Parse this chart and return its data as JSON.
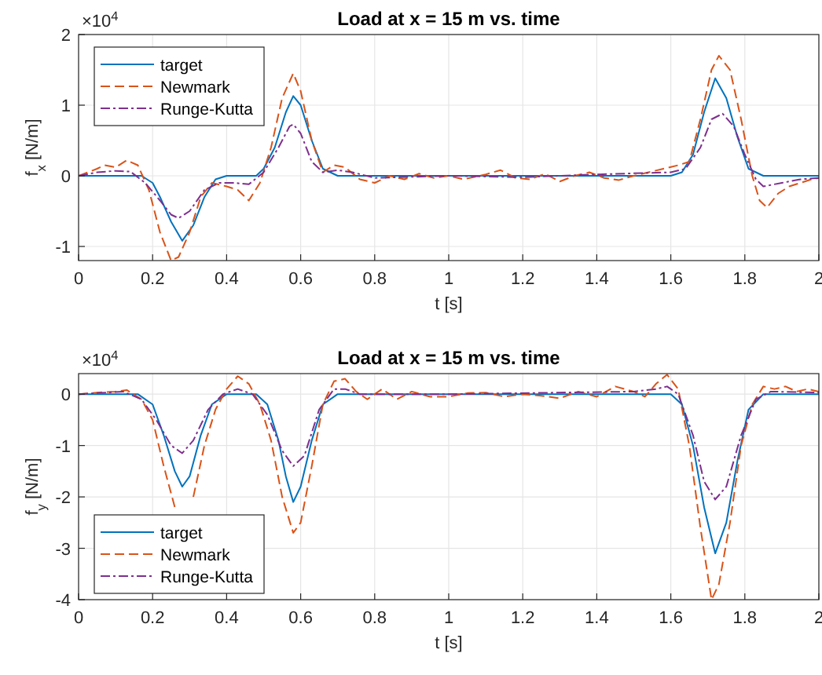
{
  "chart_data": [
    {
      "type": "line",
      "title": "Load at x = 15 m vs. time",
      "xlabel": "t [s]",
      "ylabel": "f$_{x}$ [N/m]",
      "annotations": [
        "×10$^{4}$"
      ],
      "xlim": [
        0,
        2
      ],
      "xticks": [
        0,
        0.2,
        0.4,
        0.6,
        0.8,
        1,
        1.2,
        1.4,
        1.6,
        1.8,
        2
      ],
      "ylim": [
        -1.2,
        2
      ],
      "yticks": [
        -1,
        0,
        1,
        2
      ],
      "grid": true,
      "legend": "top left",
      "series": [
        {
          "name": "target",
          "color": "#0072bd",
          "line_style": "solid",
          "x": [
            0,
            0.17,
            0.2,
            0.22,
            0.25,
            0.28,
            0.31,
            0.34,
            0.37,
            0.4,
            0.48,
            0.5,
            0.53,
            0.56,
            0.58,
            0.6,
            0.63,
            0.66,
            0.7,
            1.6,
            1.63,
            1.66,
            1.69,
            1.72,
            1.75,
            1.78,
            1.81,
            1.85,
            2
          ],
          "values": [
            0,
            0,
            -0.1,
            -0.3,
            -0.65,
            -0.92,
            -0.7,
            -0.3,
            -0.05,
            0,
            0,
            0.1,
            0.4,
            0.9,
            1.13,
            1.0,
            0.5,
            0.1,
            0,
            0,
            0.05,
            0.3,
            0.9,
            1.38,
            1.1,
            0.55,
            0.1,
            0,
            0
          ]
        },
        {
          "name": "Newmark",
          "color": "#d95319",
          "line_style": "dashed",
          "x": [
            0,
            0.05,
            0.07,
            0.1,
            0.13,
            0.16,
            0.19,
            0.22,
            0.25,
            0.27,
            0.3,
            0.33,
            0.36,
            0.4,
            0.43,
            0.46,
            0.49,
            0.52,
            0.55,
            0.58,
            0.6,
            0.63,
            0.66,
            0.69,
            0.72,
            0.76,
            0.8,
            0.84,
            0.88,
            0.92,
            0.96,
            1.0,
            1.04,
            1.1,
            1.14,
            1.18,
            1.22,
            1.26,
            1.3,
            1.34,
            1.38,
            1.42,
            1.46,
            1.5,
            1.54,
            1.58,
            1.62,
            1.65,
            1.68,
            1.71,
            1.73,
            1.76,
            1.79,
            1.82,
            1.84,
            1.86,
            1.89,
            1.92,
            1.95,
            1.98,
            2
          ],
          "values": [
            0,
            0.1,
            0.15,
            0.12,
            0.22,
            0.15,
            -0.2,
            -0.8,
            -1.2,
            -1.15,
            -0.8,
            -0.3,
            -0.1,
            -0.15,
            -0.2,
            -0.35,
            -0.1,
            0.4,
            1.1,
            1.45,
            1.2,
            0.5,
            0.05,
            0.15,
            0.12,
            -0.05,
            -0.1,
            0,
            -0.05,
            0.03,
            -0.03,
            0,
            -0.05,
            0.02,
            0.08,
            -0.03,
            -0.05,
            0.03,
            -0.08,
            0,
            0.05,
            -0.03,
            -0.06,
            0,
            0.05,
            0.1,
            0.15,
            0.2,
            0.8,
            1.5,
            1.7,
            1.5,
            0.8,
            0,
            -0.35,
            -0.45,
            -0.25,
            -0.15,
            -0.1,
            -0.05,
            -0.03
          ]
        },
        {
          "name": "Runge-Kutta",
          "color": "#7e2f8e",
          "line_style": "dashdot",
          "x": [
            0,
            0.05,
            0.1,
            0.14,
            0.18,
            0.22,
            0.25,
            0.27,
            0.3,
            0.34,
            0.38,
            0.42,
            0.46,
            0.5,
            0.54,
            0.57,
            0.58,
            0.6,
            0.63,
            0.66,
            0.7,
            0.74,
            0.8,
            1.0,
            1.2,
            1.4,
            1.6,
            1.64,
            1.68,
            1.71,
            1.74,
            1.77,
            1.8,
            1.83,
            1.85,
            1.9,
            1.95,
            2
          ],
          "values": [
            0,
            0.05,
            0.07,
            0.06,
            -0.1,
            -0.35,
            -0.55,
            -0.6,
            -0.5,
            -0.2,
            -0.1,
            -0.1,
            -0.12,
            0.05,
            0.4,
            0.7,
            0.73,
            0.6,
            0.2,
            0.05,
            0.08,
            0.05,
            -0.03,
            0,
            -0.02,
            0.02,
            0.05,
            0.1,
            0.4,
            0.8,
            0.88,
            0.7,
            0.3,
            -0.05,
            -0.15,
            -0.1,
            -0.05,
            -0.03
          ]
        }
      ]
    },
    {
      "type": "line",
      "title": "Load at x = 15 m vs. time",
      "xlabel": "t [s]",
      "ylabel": "f$_{y}$ [N/m]",
      "annotations": [
        "×10$^{4}$"
      ],
      "xlim": [
        0,
        2
      ],
      "xticks": [
        0,
        0.2,
        0.4,
        0.6,
        0.8,
        1,
        1.2,
        1.4,
        1.6,
        1.8,
        2
      ],
      "ylim": [
        -4,
        0.4
      ],
      "yticks": [
        -4,
        -3,
        -2,
        -1,
        0
      ],
      "grid": true,
      "legend": "bottom left",
      "series": [
        {
          "name": "target",
          "color": "#0072bd",
          "line_style": "solid",
          "x": [
            0,
            0.16,
            0.2,
            0.23,
            0.26,
            0.28,
            0.3,
            0.33,
            0.36,
            0.4,
            0.48,
            0.51,
            0.54,
            0.56,
            0.58,
            0.6,
            0.63,
            0.66,
            0.7,
            1.6,
            1.63,
            1.66,
            1.69,
            1.72,
            1.75,
            1.78,
            1.81,
            1.85,
            2
          ],
          "values": [
            0,
            0,
            -0.2,
            -0.8,
            -1.5,
            -1.8,
            -1.6,
            -0.8,
            -0.2,
            0,
            0,
            -0.2,
            -0.9,
            -1.6,
            -2.1,
            -1.8,
            -0.9,
            -0.2,
            0,
            0,
            -0.2,
            -1.0,
            -2.2,
            -3.1,
            -2.5,
            -1.3,
            -0.3,
            0,
            0
          ]
        },
        {
          "name": "Newmark",
          "color": "#d95319",
          "line_style": "dashed",
          "x": [
            0,
            0.05,
            0.1,
            0.13,
            0.17,
            0.2,
            0.23,
            0.26,
            0.28,
            0.31,
            0.34,
            0.37,
            0.4,
            0.43,
            0.46,
            0.49,
            0.52,
            0.55,
            0.58,
            0.6,
            0.63,
            0.66,
            0.69,
            0.72,
            0.75,
            0.78,
            0.82,
            0.86,
            0.9,
            0.95,
            1.0,
            1.05,
            1.1,
            1.15,
            1.2,
            1.25,
            1.3,
            1.35,
            1.4,
            1.45,
            1.5,
            1.53,
            1.56,
            1.59,
            1.62,
            1.65,
            1.68,
            1.71,
            1.73,
            1.76,
            1.79,
            1.82,
            1.85,
            1.88,
            1.91,
            1.94,
            1.97,
            2
          ],
          "values": [
            0,
            0.03,
            0.05,
            0.08,
            -0.1,
            -0.5,
            -1.4,
            -2.2,
            null,
            -2.0,
            -1.0,
            -0.3,
            0.1,
            0.35,
            0.2,
            -0.2,
            -0.9,
            -2.0,
            -2.7,
            -2.5,
            -1.4,
            -0.2,
            0.25,
            0.3,
            0.05,
            -0.1,
            0.1,
            -0.1,
            0.05,
            -0.05,
            -0.05,
            0.02,
            0.03,
            -0.05,
            0,
            -0.03,
            -0.08,
            0.05,
            -0.05,
            0.15,
            0.05,
            -0.05,
            0.2,
            0.38,
            0.1,
            -1.0,
            -2.6,
            -4.0,
            -3.7,
            -2.5,
            -1.0,
            -0.2,
            0.15,
            0.1,
            0.15,
            0.05,
            0.1,
            0.05
          ]
        },
        {
          "name": "Runge-Kutta",
          "color": "#7e2f8e",
          "line_style": "dashdot",
          "x": [
            0,
            0.12,
            0.17,
            0.21,
            0.25,
            0.28,
            0.31,
            0.35,
            0.39,
            0.43,
            0.47,
            0.51,
            0.55,
            0.58,
            0.61,
            0.65,
            0.69,
            0.72,
            0.76,
            1.0,
            1.5,
            1.56,
            1.59,
            1.62,
            1.66,
            1.69,
            1.72,
            1.75,
            1.79,
            1.83,
            1.87,
            2
          ],
          "values": [
            0,
            0.05,
            -0.1,
            -0.5,
            -1.0,
            -1.15,
            -0.9,
            -0.3,
            0,
            0.1,
            0,
            -0.4,
            -1.1,
            -1.4,
            -1.2,
            -0.3,
            0.1,
            0.1,
            0,
            0,
            0.05,
            0.1,
            0.15,
            0,
            -0.8,
            -1.7,
            -2.05,
            -1.8,
            -0.8,
            -0.1,
            0.05,
            0.03
          ]
        }
      ]
    }
  ]
}
